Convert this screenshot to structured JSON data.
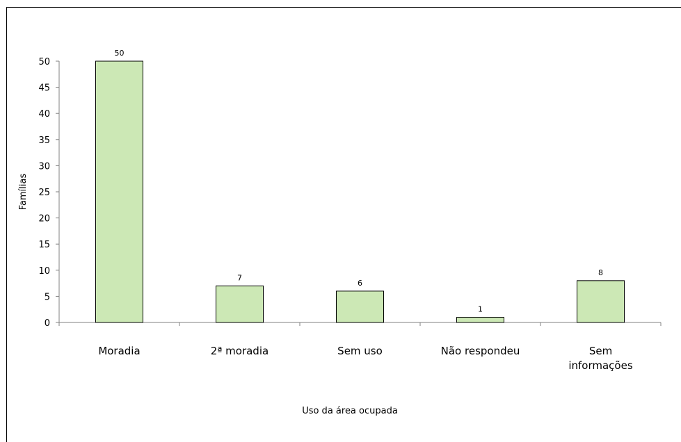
{
  "chart_data": {
    "type": "bar",
    "categories": [
      "Moradia",
      "2ª moradia",
      "Sem uso",
      "Não respondeu",
      "Sem informações"
    ],
    "category_lines": [
      [
        "Moradia"
      ],
      [
        "2ª moradia"
      ],
      [
        "Sem uso"
      ],
      [
        "Não respondeu"
      ],
      [
        "Sem",
        "informações"
      ]
    ],
    "values": [
      50,
      7,
      6,
      1,
      8
    ],
    "data_labels": [
      "50",
      "7",
      "6",
      "1",
      "8"
    ],
    "xlabel": "Uso da área ocupada",
    "ylabel": "Famílias",
    "ylim": [
      0,
      50
    ],
    "yticks": [
      "0",
      "5",
      "10",
      "15",
      "20",
      "25",
      "30",
      "35",
      "40",
      "45",
      "50"
    ],
    "grid": false,
    "legend": "none",
    "colors": {
      "bar_fill": "#cce8b5",
      "bar_stroke": "#000000",
      "axis": "#808080"
    }
  }
}
